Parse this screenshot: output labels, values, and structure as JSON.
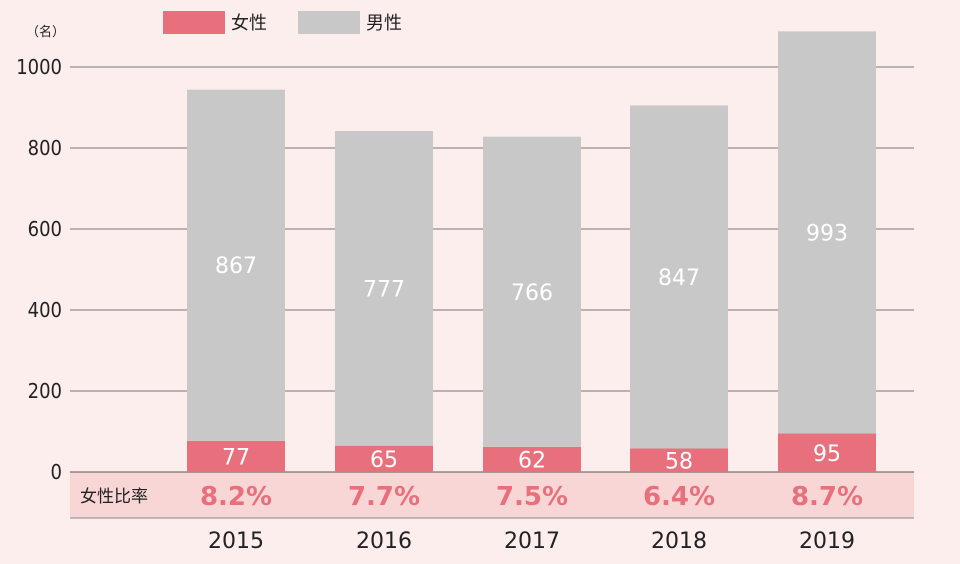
{
  "chart_data": {
    "type": "bar",
    "stacked": true,
    "unit_label": "（名）",
    "categories": [
      "2015",
      "2016",
      "2017",
      "2018",
      "2019"
    ],
    "series": [
      {
        "name": "女性",
        "color": "#e8707c",
        "values": [
          77,
          65,
          62,
          58,
          95
        ]
      },
      {
        "name": "男性",
        "color": "#c8c8c8",
        "values": [
          867,
          777,
          766,
          847,
          993
        ]
      }
    ],
    "ylim": [
      0,
      1000
    ],
    "yticks": [
      "0",
      "200",
      "400",
      "600",
      "800",
      "1000"
    ],
    "ytick_values": [
      0,
      200,
      400,
      600,
      800,
      1000
    ],
    "grid": true,
    "legend": "top-left",
    "ratio_row": {
      "label": "女性比率",
      "values": [
        "8.2%",
        "7.7%",
        "7.5%",
        "6.4%",
        "8.7%"
      ]
    }
  }
}
